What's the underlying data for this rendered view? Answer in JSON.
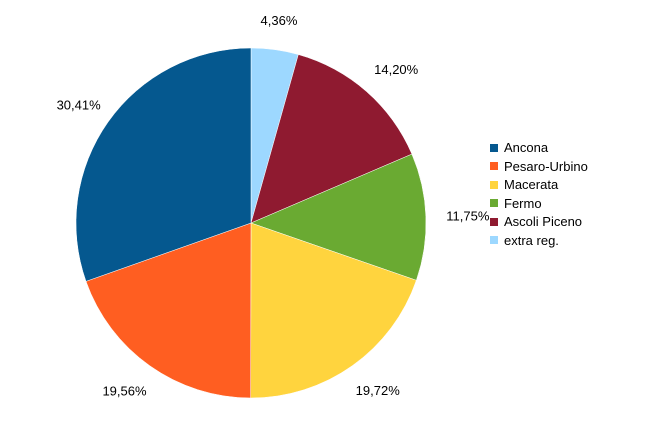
{
  "chart_data": {
    "type": "pie",
    "title": "",
    "start_angle": "top",
    "direction": "clockwise",
    "legend_position": "right",
    "slices": [
      {
        "name": "extra reg.",
        "value": 4.36,
        "label": "4,36%",
        "color": "#9dd8ff"
      },
      {
        "name": "Ascoli Piceno",
        "value": 14.2,
        "label": "14,20%",
        "color": "#8f1a30"
      },
      {
        "name": "Fermo",
        "value": 11.75,
        "label": "11,75%",
        "color": "#6aaa32"
      },
      {
        "name": "Macerata",
        "value": 19.72,
        "label": "19,72%",
        "color": "#ffd43e"
      },
      {
        "name": "Pesaro-Urbino",
        "value": 19.56,
        "label": "19,56%",
        "color": "#ff5e21"
      },
      {
        "name": "Ancona",
        "value": 30.41,
        "label": "30,41%",
        "color": "#05588f"
      }
    ],
    "legend": [
      {
        "label": "Ancona",
        "color": "#05588f"
      },
      {
        "label": "Pesaro-Urbino",
        "color": "#ff5e21"
      },
      {
        "label": "Macerata",
        "color": "#ffd43e"
      },
      {
        "label": "Fermo",
        "color": "#6aaa32"
      },
      {
        "label": "Ascoli Piceno",
        "color": "#8f1a30"
      },
      {
        "label": "extra reg.",
        "color": "#9dd8ff"
      }
    ]
  }
}
